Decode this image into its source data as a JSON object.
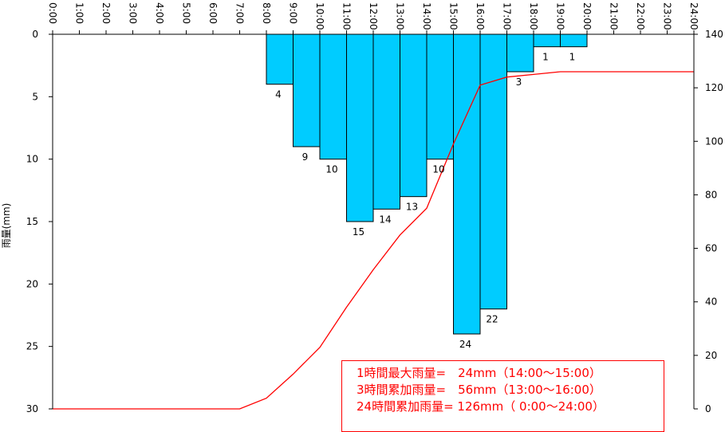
{
  "chart_data": {
    "type": "bar",
    "x_ticks": [
      "0:00",
      "1:00",
      "2:00",
      "3:00",
      "4:00",
      "5:00",
      "6:00",
      "7:00",
      "8:00",
      "9:00",
      "10:00",
      "11:00",
      "12:00",
      "13:00",
      "14:00",
      "15:00",
      "16:00",
      "17:00",
      "18:00",
      "19:00",
      "20:00",
      "21:00",
      "22:00",
      "23:00",
      "24:00"
    ],
    "ylabel": "雨量(mm)",
    "y_left_ticks": [
      "0",
      "5",
      "10",
      "15",
      "20",
      "25",
      "30"
    ],
    "y_left_range": [
      0,
      30
    ],
    "y_left_inverted": true,
    "y_right_ticks": [
      "140",
      "120",
      "100",
      "80",
      "60",
      "40",
      "20",
      "0"
    ],
    "y_right_range": [
      0,
      140
    ],
    "bar_color": "#00ccff",
    "line_color": "#ff0000",
    "series": [
      {
        "type": "bar",
        "axis": "left",
        "x": [
          8,
          9,
          10,
          11,
          12,
          13,
          14,
          15,
          16,
          17,
          18,
          19
        ],
        "values": [
          4,
          9,
          10,
          15,
          14,
          13,
          10,
          24,
          22,
          3,
          1,
          1
        ],
        "labels": [
          "4",
          "9",
          "10",
          "15",
          "14",
          "13",
          "10",
          "24",
          "22",
          "3",
          "1",
          "1"
        ]
      },
      {
        "type": "line",
        "axis": "right",
        "x": [
          0,
          1,
          2,
          3,
          4,
          5,
          6,
          7,
          8,
          9,
          10,
          11,
          12,
          13,
          14,
          15,
          16,
          17,
          18,
          19,
          20,
          21,
          22,
          23,
          24
        ],
        "values": [
          0,
          0,
          0,
          0,
          0,
          0,
          0,
          0,
          4,
          13,
          23,
          38,
          52,
          65,
          75,
          99,
          121,
          124,
          125,
          126,
          126,
          126,
          126,
          126,
          126
        ]
      }
    ]
  },
  "stats": {
    "line1": "1時間最大雨量=　24mm（14:00～15:00）",
    "line2": "3時間累加雨量=　56mm（13:00～16:00）",
    "line3": "24時間累加雨量= 126mm（ 0:00～24:00）"
  }
}
